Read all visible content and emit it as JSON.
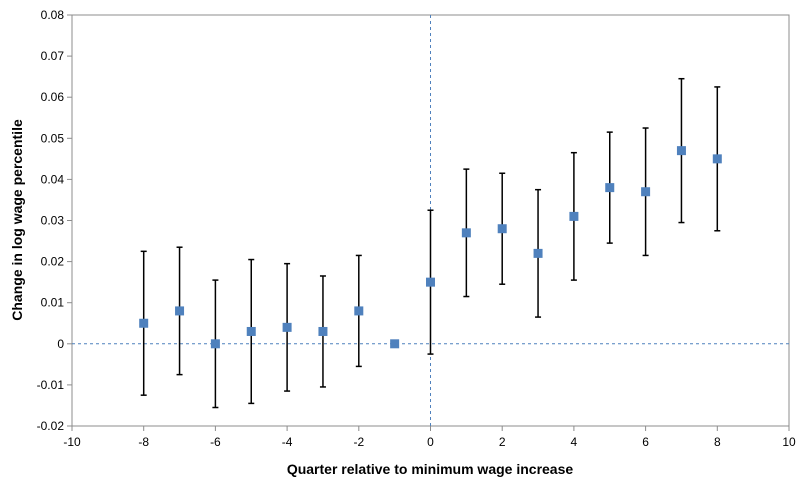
{
  "chart_data": {
    "type": "scatter",
    "title": "",
    "xlabel": "Quarter relative to minimum wage increase",
    "ylabel": "Change in log wage percentile",
    "xlim": [
      -10,
      10
    ],
    "ylim": [
      -0.02,
      0.08
    ],
    "xticks": [
      -10,
      -8,
      -6,
      -4,
      -2,
      0,
      2,
      4,
      6,
      8,
      10
    ],
    "yticks": [
      -0.02,
      -0.01,
      0,
      0.01,
      0.02,
      0.03,
      0.04,
      0.05,
      0.06,
      0.07,
      0.08
    ],
    "xtick_labels": [
      "-10",
      "-8",
      "-6",
      "-4",
      "-2",
      "0",
      "2",
      "4",
      "6",
      "8",
      "10"
    ],
    "ytick_labels": [
      "-0.02",
      "-0.01",
      "0",
      "0.01",
      "0.02",
      "0.03",
      "0.04",
      "0.05",
      "0.06",
      "0.07",
      "0.08"
    ],
    "grid": false,
    "legend": "none",
    "reference_lines": {
      "x": 0,
      "y": 0,
      "style": "dashed"
    },
    "colors": {
      "marker": "#4F81BD",
      "errorbar": "#000000",
      "reference": "#4F81BD"
    },
    "points": [
      {
        "x": -8,
        "y": 0.005,
        "low": -0.0125,
        "high": 0.0225
      },
      {
        "x": -7,
        "y": 0.008,
        "low": -0.0075,
        "high": 0.0235
      },
      {
        "x": -6,
        "y": 0.0,
        "low": -0.0155,
        "high": 0.0155
      },
      {
        "x": -5,
        "y": 0.003,
        "low": -0.0145,
        "high": 0.0205
      },
      {
        "x": -4,
        "y": 0.004,
        "low": -0.0115,
        "high": 0.0195
      },
      {
        "x": -3,
        "y": 0.003,
        "low": -0.0105,
        "high": 0.0165
      },
      {
        "x": -2,
        "y": 0.008,
        "low": -0.0055,
        "high": 0.0215
      },
      {
        "x": -1,
        "y": 0.0,
        "low": null,
        "high": null
      },
      {
        "x": 0,
        "y": 0.015,
        "low": -0.0025,
        "high": 0.0325
      },
      {
        "x": 1,
        "y": 0.027,
        "low": 0.0115,
        "high": 0.0425
      },
      {
        "x": 2,
        "y": 0.028,
        "low": 0.0145,
        "high": 0.0415
      },
      {
        "x": 3,
        "y": 0.022,
        "low": 0.0065,
        "high": 0.0375
      },
      {
        "x": 4,
        "y": 0.031,
        "low": 0.0155,
        "high": 0.0465
      },
      {
        "x": 5,
        "y": 0.038,
        "low": 0.0245,
        "high": 0.0515
      },
      {
        "x": 6,
        "y": 0.037,
        "low": 0.0215,
        "high": 0.0525
      },
      {
        "x": 7,
        "y": 0.047,
        "low": 0.0295,
        "high": 0.0645
      },
      {
        "x": 8,
        "y": 0.045,
        "low": 0.0275,
        "high": 0.0625
      }
    ]
  }
}
